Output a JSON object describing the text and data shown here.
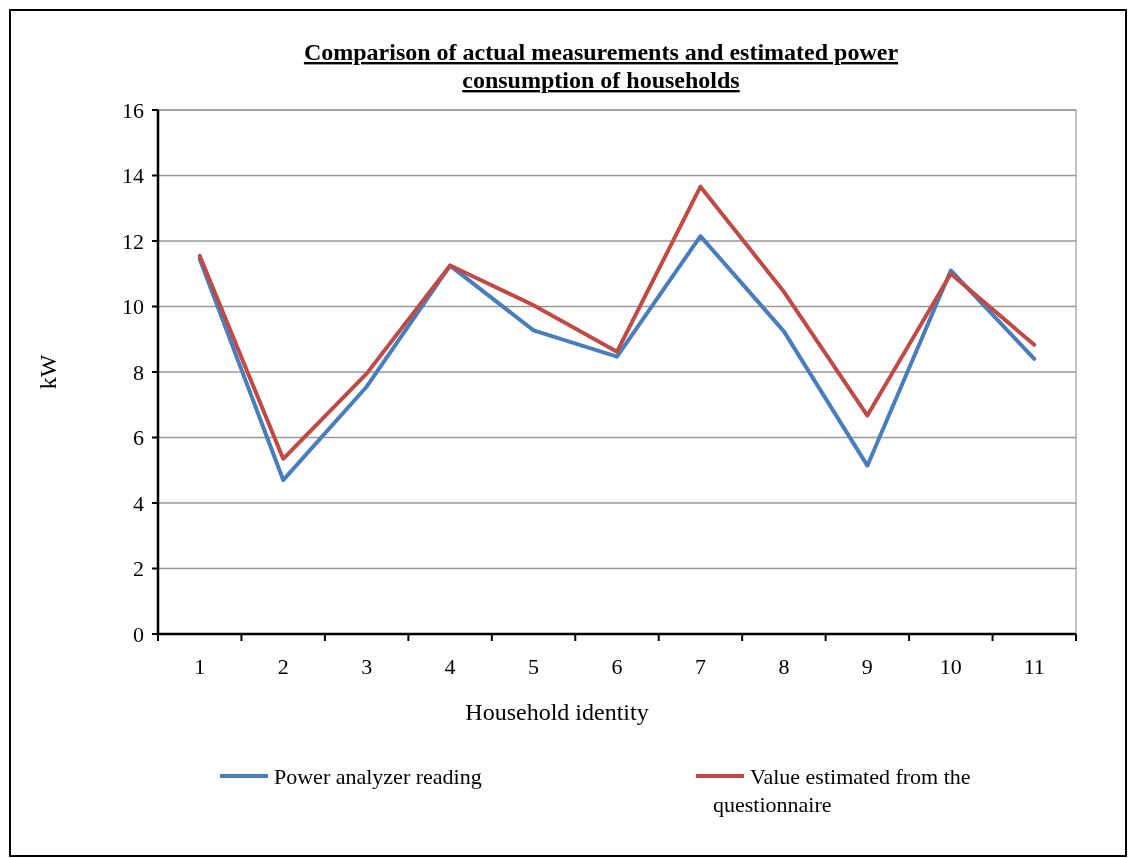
{
  "chart_data": {
    "type": "line",
    "title": "Comparison of actual measurements and estimated power consumption of households",
    "xlabel": "Household identity",
    "ylabel": "kW",
    "categories": [
      "1",
      "2",
      "3",
      "4",
      "5",
      "6",
      "7",
      "8",
      "9",
      "10",
      "11"
    ],
    "series": [
      {
        "name": "Power analyzer reading",
        "color": "#4a7ebb",
        "values": [
          11.45,
          4.7,
          7.55,
          11.25,
          9.27,
          8.47,
          12.15,
          9.24,
          5.14,
          11.1,
          8.4
        ]
      },
      {
        "name": "Value estimated from the questionnaire",
        "color": "#be4b48",
        "values": [
          11.55,
          5.35,
          7.95,
          11.25,
          10.04,
          8.62,
          13.66,
          10.45,
          6.67,
          11.0,
          8.83
        ]
      }
    ],
    "ylim": [
      0,
      16
    ],
    "yticks": [
      0,
      2,
      4,
      6,
      8,
      10,
      12,
      14,
      16
    ],
    "grid": "y",
    "legend": "bottom",
    "marker": "none",
    "line_style": "solid"
  }
}
